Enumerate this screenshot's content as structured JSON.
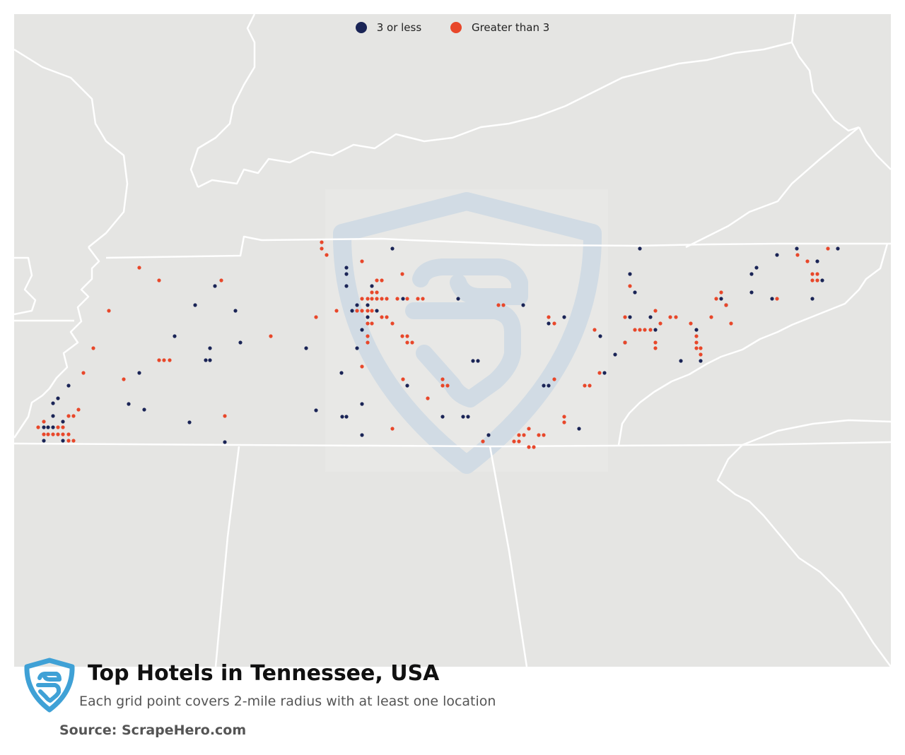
{
  "title": "Top Hotels in Tennessee, USA",
  "subtitle": "Each grid point covers 2-mile radius with at least one location",
  "source": "Source: ScrapeHero.com",
  "legend": [
    {
      "label": "3 or less",
      "color": "#1a2456"
    },
    {
      "label": "Greater than 3",
      "color": "#e8472a"
    }
  ],
  "colors": {
    "background": "#e5e5e3",
    "border": "#ffffff",
    "watermark": "#c9d6e2",
    "logo": "#3fa1d6"
  },
  "icons": [
    "scrapehero-logo-icon",
    "watermark-shield-icon"
  ],
  "chart_data": {
    "type": "scatter",
    "title": "Top Hotels in Tennessee, USA",
    "series": [
      {
        "name": "3 or less",
        "points": [
          [
            62,
            605
          ],
          [
            68,
            605
          ],
          [
            75,
            605
          ],
          [
            62,
            624
          ],
          [
            89,
            624
          ],
          [
            75,
            589
          ],
          [
            82,
            564
          ],
          [
            97,
            546
          ],
          [
            89,
            597
          ],
          [
            75,
            571
          ],
          [
            197,
            528
          ],
          [
            182,
            572
          ],
          [
            204,
            580
          ],
          [
            268,
            598
          ],
          [
            291,
            510
          ],
          [
            297,
            510
          ],
          [
            297,
            493
          ],
          [
            247,
            476
          ],
          [
            276,
            432
          ],
          [
            304,
            405
          ],
          [
            333,
            440
          ],
          [
            340,
            485
          ],
          [
            318,
            626
          ],
          [
            433,
            493
          ],
          [
            447,
            581
          ],
          [
            483,
            528
          ],
          [
            484,
            590
          ],
          [
            490,
            590
          ],
          [
            512,
            616
          ],
          [
            512,
            572
          ],
          [
            505,
            493
          ],
          [
            505,
            432
          ],
          [
            490,
            379
          ],
          [
            490,
            388
          ],
          [
            490,
            405
          ],
          [
            520,
            432
          ],
          [
            526,
            405
          ],
          [
            533,
            440
          ],
          [
            520,
            449
          ],
          [
            512,
            467
          ],
          [
            498,
            440
          ],
          [
            555,
            352
          ],
          [
            570,
            423
          ],
          [
            576,
            546
          ],
          [
            626,
            590
          ],
          [
            655,
            590
          ],
          [
            662,
            590
          ],
          [
            648,
            423
          ],
          [
            669,
            511
          ],
          [
            676,
            511
          ],
          [
            691,
            616
          ],
          [
            740,
            432
          ],
          [
            769,
            546
          ],
          [
            776,
            546
          ],
          [
            776,
            458
          ],
          [
            798,
            449
          ],
          [
            819,
            607
          ],
          [
            849,
            476
          ],
          [
            855,
            528
          ],
          [
            870,
            502
          ],
          [
            884,
            485
          ],
          [
            891,
            388
          ],
          [
            898,
            414
          ],
          [
            905,
            352
          ],
          [
            891,
            449
          ],
          [
            920,
            449
          ],
          [
            927,
            467
          ],
          [
            963,
            511
          ],
          [
            985,
            467
          ],
          [
            991,
            511
          ],
          [
            1020,
            423
          ],
          [
            1027,
            432
          ],
          [
            1063,
            388
          ],
          [
            1063,
            414
          ],
          [
            1070,
            379
          ],
          [
            1092,
            423
          ],
          [
            1099,
            361
          ],
          [
            1127,
            352
          ],
          [
            1149,
            423
          ],
          [
            1156,
            370
          ],
          [
            1163,
            397
          ],
          [
            1185,
            352
          ]
        ]
      },
      {
        "name": "Greater than 3",
        "points": [
          [
            54,
            605
          ],
          [
            62,
            615
          ],
          [
            68,
            615
          ],
          [
            75,
            615
          ],
          [
            82,
            615
          ],
          [
            89,
            615
          ],
          [
            97,
            615
          ],
          [
            82,
            605
          ],
          [
            89,
            605
          ],
          [
            97,
            589
          ],
          [
            104,
            589
          ],
          [
            111,
            580
          ],
          [
            97,
            624
          ],
          [
            104,
            624
          ],
          [
            62,
            597
          ],
          [
            118,
            528
          ],
          [
            132,
            493
          ],
          [
            154,
            440
          ],
          [
            175,
            537
          ],
          [
            197,
            379
          ],
          [
            225,
            397
          ],
          [
            225,
            510
          ],
          [
            232,
            510
          ],
          [
            240,
            510
          ],
          [
            313,
            397
          ],
          [
            318,
            589
          ],
          [
            383,
            476
          ],
          [
            447,
            449
          ],
          [
            455,
            343
          ],
          [
            455,
            352
          ],
          [
            462,
            361
          ],
          [
            476,
            440
          ],
          [
            505,
            440
          ],
          [
            512,
            423
          ],
          [
            512,
            519
          ],
          [
            512,
            370
          ],
          [
            520,
            423
          ],
          [
            526,
            423
          ],
          [
            526,
            414
          ],
          [
            533,
            414
          ],
          [
            533,
            397
          ],
          [
            540,
            397
          ],
          [
            533,
            423
          ],
          [
            540,
            423
          ],
          [
            547,
            423
          ],
          [
            540,
            449
          ],
          [
            547,
            449
          ],
          [
            555,
            458
          ],
          [
            562,
            423
          ],
          [
            576,
            423
          ],
          [
            569,
            388
          ],
          [
            569,
            476
          ],
          [
            576,
            476
          ],
          [
            576,
            485
          ],
          [
            583,
            485
          ],
          [
            591,
            423
          ],
          [
            598,
            423
          ],
          [
            512,
            440
          ],
          [
            520,
            440
          ],
          [
            526,
            440
          ],
          [
            520,
            458
          ],
          [
            526,
            458
          ],
          [
            520,
            476
          ],
          [
            520,
            485
          ],
          [
            555,
            607
          ],
          [
            570,
            537
          ],
          [
            605,
            564
          ],
          [
            626,
            537
          ],
          [
            626,
            546
          ],
          [
            633,
            546
          ],
          [
            683,
            625
          ],
          [
            705,
            432
          ],
          [
            712,
            432
          ],
          [
            727,
            625
          ],
          [
            734,
            625
          ],
          [
            734,
            616
          ],
          [
            741,
            616
          ],
          [
            748,
            607
          ],
          [
            748,
            633
          ],
          [
            755,
            633
          ],
          [
            762,
            616
          ],
          [
            769,
            616
          ],
          [
            776,
            449
          ],
          [
            784,
            458
          ],
          [
            784,
            537
          ],
          [
            798,
            590
          ],
          [
            798,
            598
          ],
          [
            827,
            546
          ],
          [
            834,
            546
          ],
          [
            841,
            467
          ],
          [
            848,
            528
          ],
          [
            884,
            449
          ],
          [
            884,
            485
          ],
          [
            891,
            405
          ],
          [
            898,
            467
          ],
          [
            905,
            467
          ],
          [
            912,
            467
          ],
          [
            920,
            467
          ],
          [
            927,
            440
          ],
          [
            927,
            485
          ],
          [
            927,
            493
          ],
          [
            934,
            458
          ],
          [
            948,
            449
          ],
          [
            956,
            449
          ],
          [
            977,
            458
          ],
          [
            985,
            476
          ],
          [
            985,
            485
          ],
          [
            985,
            493
          ],
          [
            991,
            493
          ],
          [
            991,
            502
          ],
          [
            1006,
            449
          ],
          [
            1013,
            423
          ],
          [
            1020,
            414
          ],
          [
            1027,
            432
          ],
          [
            1034,
            458
          ],
          [
            1099,
            423
          ],
          [
            1128,
            361
          ],
          [
            1142,
            370
          ],
          [
            1149,
            388
          ],
          [
            1156,
            388
          ],
          [
            1149,
            397
          ],
          [
            1156,
            397
          ],
          [
            1171,
            352
          ]
        ]
      }
    ]
  }
}
